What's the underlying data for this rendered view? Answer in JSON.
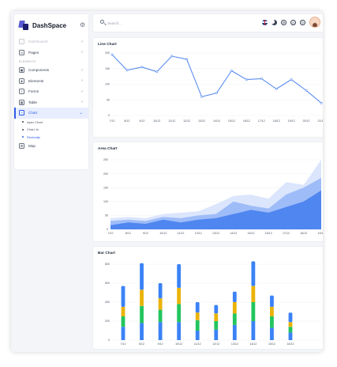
{
  "app": {
    "brand": "DashSpace"
  },
  "sidebar": {
    "items": [
      {
        "label": "Dashboards",
        "icon": "home-icon",
        "dim": true
      },
      {
        "label": "Pages",
        "icon": "pages-icon"
      }
    ],
    "section_label": "ELEMENTS",
    "items2": [
      {
        "label": "Components",
        "icon": "components-icon"
      },
      {
        "label": "Elements",
        "icon": "elements-icon"
      },
      {
        "label": "Forms",
        "icon": "forms-icon"
      },
      {
        "label": "Table",
        "icon": "table-icon"
      },
      {
        "label": "Chart",
        "icon": "chart-icon"
      }
    ],
    "sub_items": [
      {
        "label": "Apex Chart"
      },
      {
        "label": "Chart Js"
      },
      {
        "label": "Rechartjs"
      }
    ],
    "last_item": {
      "label": "Map",
      "icon": "map-icon"
    }
  },
  "topbar": {
    "search_placeholder": "Search..."
  },
  "cards": {
    "line_title": "Line Chart",
    "area_title": "Area Chart",
    "bar_title": "Bar Chart"
  },
  "colors": {
    "accent": "#2f5fe8",
    "line": "#5b8def",
    "area_light": "#dbe6fd",
    "area_mid": "#9ebcf8",
    "area_dark": "#4f86f0",
    "bar_blue": "#3b82f6",
    "bar_yellow": "#eab308",
    "bar_green": "#22c55e"
  },
  "chart_data": [
    {
      "type": "line",
      "title": "Line Chart",
      "categories": [
        "7/12",
        "8/12",
        "9/12",
        "10/12",
        "11/12",
        "12/12",
        "13/12",
        "14/12",
        "15/12",
        "16/12",
        "17/12",
        "18/12",
        "19/12",
        "20/12",
        "21/12"
      ],
      "y_ticks": [
        "0",
        "50",
        "100",
        "150",
        "200"
      ],
      "ylim": [
        0,
        200
      ],
      "values": [
        195,
        145,
        155,
        140,
        190,
        180,
        60,
        72,
        143,
        115,
        118,
        85,
        115,
        80,
        40
      ]
    },
    {
      "type": "area",
      "title": "Area Chart",
      "categories": [
        "7/12",
        "8/12",
        "9/12",
        "10/12",
        "11/12",
        "12/12",
        "13/12",
        "14/12",
        "15/12",
        "16/12",
        "17/12",
        "18/12",
        "19/12"
      ],
      "y_ticks": [
        "0",
        "50",
        "100",
        "150",
        "200",
        "250"
      ],
      "ylim": [
        0,
        250
      ],
      "series": [
        {
          "values": [
            40,
            45,
            40,
            55,
            60,
            65,
            90,
            120,
            125,
            110,
            170,
            160,
            250
          ]
        },
        {
          "values": [
            30,
            35,
            30,
            45,
            40,
            50,
            55,
            100,
            85,
            75,
            125,
            150,
            185
          ]
        },
        {
          "values": [
            15,
            25,
            20,
            35,
            25,
            35,
            40,
            55,
            70,
            60,
            80,
            100,
            140
          ]
        }
      ]
    },
    {
      "type": "bar",
      "title": "Bar Chart",
      "categories": [
        "7/12",
        "8/12",
        "9/12",
        "10/12",
        "11/12",
        "12/12",
        "13/12",
        "14/12",
        "15/12",
        "16/12"
      ],
      "y_ticks": [
        "0",
        "200",
        "400",
        "600",
        "800"
      ],
      "ylim": [
        0,
        800
      ],
      "series": [
        {
          "values": [
            140,
            180,
            190,
            190,
            100,
            110,
            160,
            200,
            130,
            80
          ]
        },
        {
          "values": [
            110,
            180,
            130,
            190,
            110,
            90,
            120,
            200,
            120,
            60
          ]
        },
        {
          "values": [
            100,
            170,
            120,
            170,
            80,
            80,
            120,
            170,
            100,
            50
          ]
        },
        {
          "values": [
            220,
            280,
            160,
            250,
            110,
            90,
            110,
            260,
            120,
            100
          ]
        }
      ]
    }
  ]
}
